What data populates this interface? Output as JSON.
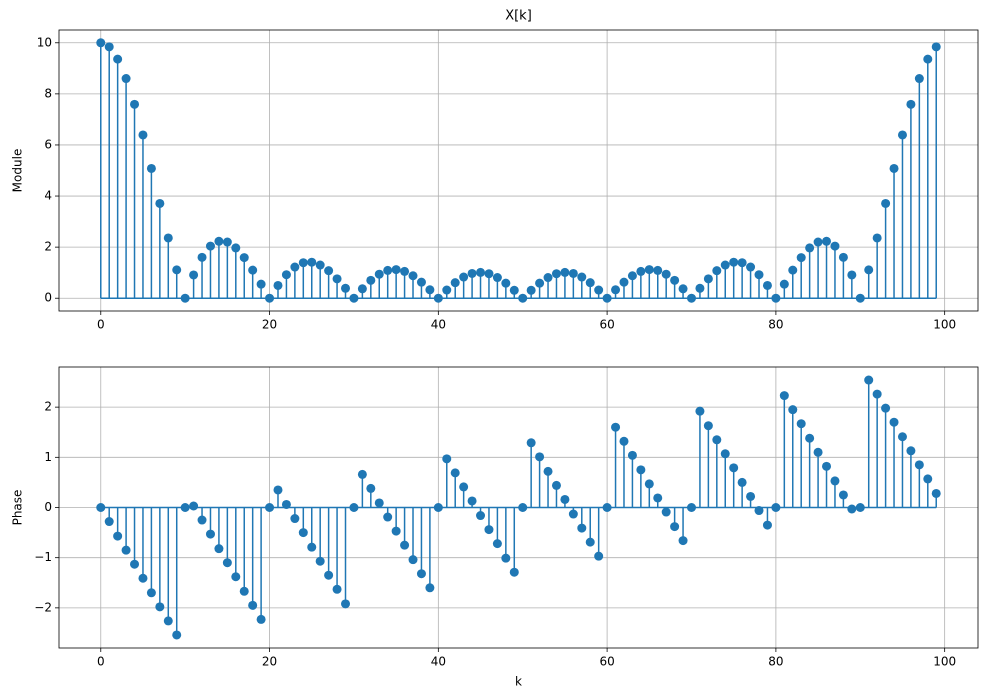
{
  "chart_data": [
    {
      "type": "stem",
      "title": "X[k]",
      "ylabel": "Module",
      "grid": true,
      "color": "#1f77b4",
      "x": [
        0,
        1,
        2,
        3,
        4,
        5,
        6,
        7,
        8,
        9,
        10,
        11,
        12,
        13,
        14,
        15,
        16,
        17,
        18,
        19,
        20,
        21,
        22,
        23,
        24,
        25,
        26,
        27,
        28,
        29,
        30,
        31,
        32,
        33,
        34,
        35,
        36,
        37,
        38,
        39,
        40,
        41,
        42,
        43,
        44,
        45,
        46,
        47,
        48,
        49,
        50,
        51,
        52,
        53,
        54,
        55,
        56,
        57,
        58,
        59,
        60,
        61,
        62,
        63,
        64,
        65,
        66,
        67,
        68,
        69,
        70,
        71,
        72,
        73,
        74,
        75,
        76,
        77,
        78,
        79,
        80,
        81,
        82,
        83,
        84,
        85,
        86,
        87,
        88,
        89,
        90,
        91,
        92,
        93,
        94,
        95,
        96,
        97,
        98,
        99
      ],
      "values": [
        10,
        9.84,
        9.36,
        8.6,
        7.59,
        6.39,
        5.08,
        3.71,
        2.36,
        1.11,
        0,
        0.91,
        1.6,
        2.04,
        2.23,
        2.2,
        1.97,
        1.59,
        1.1,
        0.55,
        0,
        0.5,
        0.92,
        1.22,
        1.39,
        1.41,
        1.3,
        1.08,
        0.76,
        0.39,
        0,
        0.37,
        0.7,
        0.94,
        1.09,
        1.12,
        1.05,
        0.88,
        0.63,
        0.33,
        0,
        0.32,
        0.61,
        0.83,
        0.97,
        1.01,
        0.96,
        0.81,
        0.59,
        0.31,
        0,
        0.31,
        0.59,
        0.81,
        0.96,
        1.01,
        0.97,
        0.83,
        0.61,
        0.32,
        0,
        0.33,
        0.63,
        0.88,
        1.05,
        1.12,
        1.09,
        0.94,
        0.7,
        0.37,
        0,
        0.39,
        0.76,
        1.08,
        1.3,
        1.41,
        1.39,
        1.22,
        0.92,
        0.5,
        0,
        0.55,
        1.1,
        1.59,
        1.97,
        2.2,
        2.23,
        2.04,
        1.6,
        0.91,
        0,
        1.11,
        2.36,
        3.71,
        5.08,
        6.39,
        7.59,
        8.6,
        9.36,
        9.84
      ],
      "xlim": [
        -4.95,
        103.95
      ],
      "xticks": [
        0,
        20,
        40,
        60,
        80,
        100
      ],
      "ylim": [
        -0.5,
        10.5
      ],
      "yticks": [
        0,
        2,
        4,
        6,
        8,
        10
      ]
    },
    {
      "type": "stem",
      "xlabel": "k",
      "ylabel": "Phase",
      "grid": true,
      "color": "#1f77b4",
      "x": [
        0,
        1,
        2,
        3,
        4,
        5,
        6,
        7,
        8,
        9,
        10,
        11,
        12,
        13,
        14,
        15,
        16,
        17,
        18,
        19,
        20,
        21,
        22,
        23,
        24,
        25,
        26,
        27,
        28,
        29,
        30,
        31,
        32,
        33,
        34,
        35,
        36,
        37,
        38,
        39,
        40,
        41,
        42,
        43,
        44,
        45,
        46,
        47,
        48,
        49,
        50,
        51,
        52,
        53,
        54,
        55,
        56,
        57,
        58,
        59,
        60,
        61,
        62,
        63,
        64,
        65,
        66,
        67,
        68,
        69,
        70,
        71,
        72,
        73,
        74,
        75,
        76,
        77,
        78,
        79,
        80,
        81,
        82,
        83,
        84,
        85,
        86,
        87,
        88,
        89,
        90,
        91,
        92,
        93,
        94,
        95,
        96,
        97,
        98,
        99
      ],
      "values": [
        0,
        -0.28,
        -0.57,
        -0.85,
        -1.13,
        -1.41,
        -1.7,
        -1.98,
        -2.26,
        -2.54,
        0,
        0.03,
        -0.25,
        -0.53,
        -0.82,
        -1.1,
        -1.38,
        -1.67,
        -1.95,
        -2.23,
        0,
        0.35,
        0.06,
        -0.22,
        -0.5,
        -0.79,
        -1.07,
        -1.35,
        -1.63,
        -1.92,
        0,
        0.66,
        0.38,
        0.09,
        -0.19,
        -0.47,
        -0.75,
        -1.04,
        -1.32,
        -1.6,
        0,
        0.97,
        0.69,
        0.41,
        0.13,
        -0.16,
        -0.44,
        -0.72,
        -1.01,
        -1.29,
        0,
        1.29,
        1.01,
        0.72,
        0.44,
        0.16,
        -0.13,
        -0.41,
        -0.69,
        -0.97,
        0,
        1.6,
        1.32,
        1.04,
        0.75,
        0.47,
        0.19,
        -0.09,
        -0.38,
        -0.66,
        0,
        1.92,
        1.63,
        1.35,
        1.07,
        0.79,
        0.5,
        0.22,
        -0.06,
        -0.35,
        0,
        2.23,
        1.95,
        1.67,
        1.38,
        1.1,
        0.82,
        0.53,
        0.25,
        -0.03,
        0,
        2.54,
        2.26,
        1.98,
        1.7,
        1.41,
        1.13,
        0.85,
        0.57,
        0.28
      ],
      "xlim": [
        -4.95,
        103.95
      ],
      "xticks": [
        0,
        20,
        40,
        60,
        80,
        100
      ],
      "ylim": [
        -2.8,
        2.8
      ],
      "yticks": [
        {
          "value": -2,
          "label": "−2"
        },
        {
          "value": -1,
          "label": "−1"
        },
        0,
        1,
        2
      ]
    }
  ]
}
